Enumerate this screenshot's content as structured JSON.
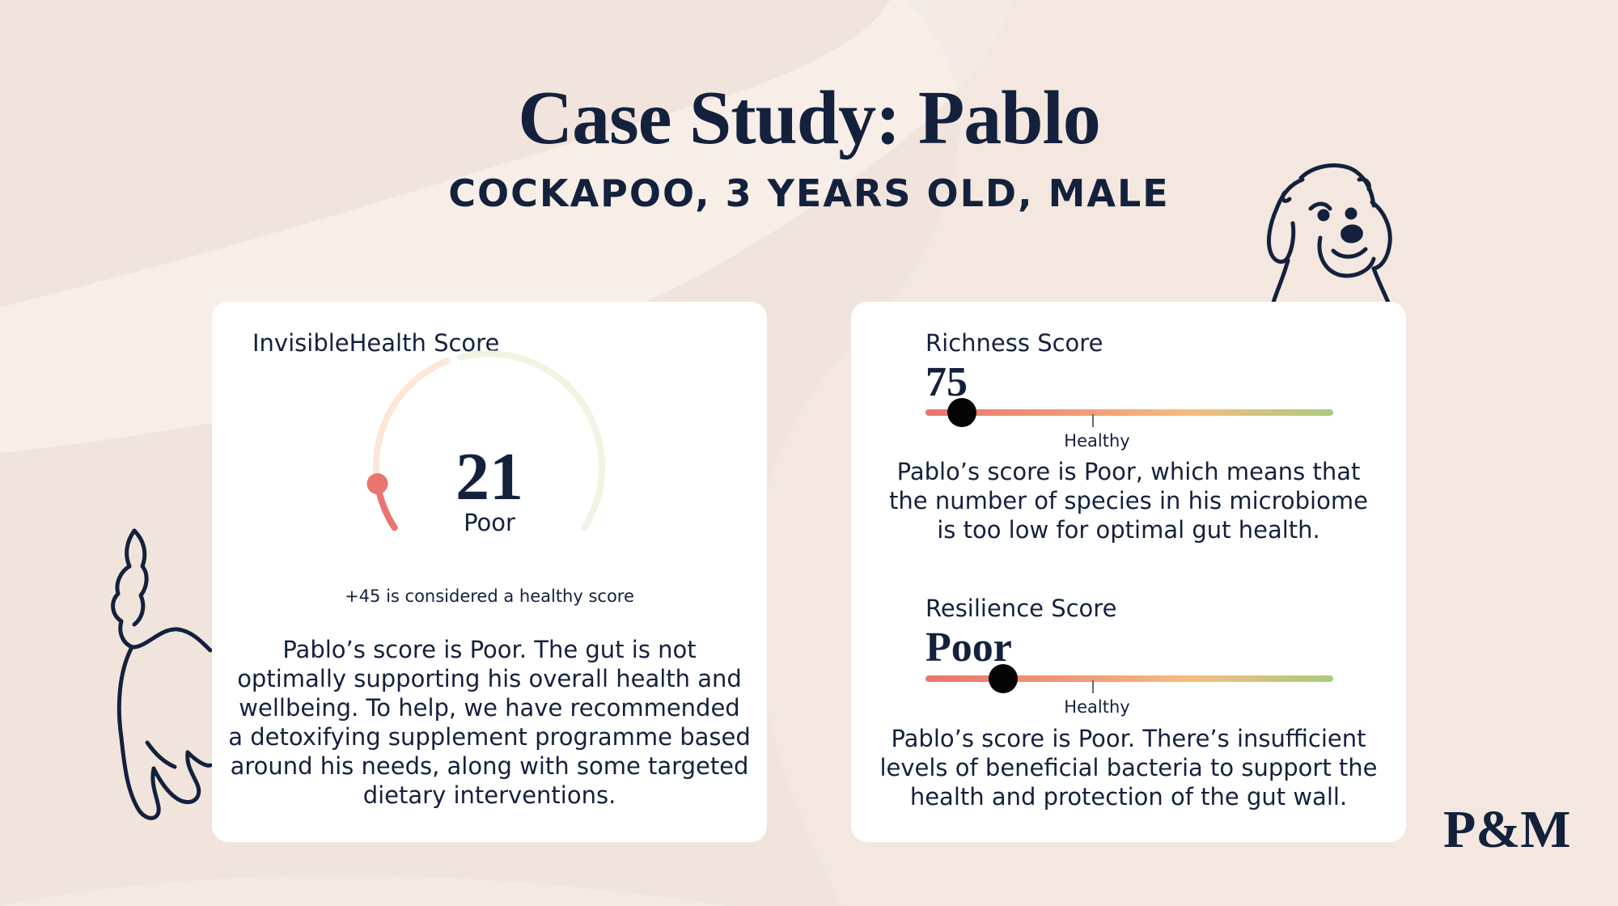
{
  "header": {
    "title": "Case Study: Pablo",
    "subtitle": "COCKAPOO, 3 YEARS OLD, MALE"
  },
  "invisible_health": {
    "label": "InvisibleHealth Score",
    "value": "21",
    "status": "Poor",
    "note": "+45 is considered a healthy score",
    "description_lines": [
      "Pablo’s score is Poor. The gut is not",
      "optimally supporting his overall health and",
      "wellbeing. To help, we have recommended",
      "a detoxifying supplement programme based",
      "around his needs, along with some targeted",
      "dietary interventions."
    ]
  },
  "richness": {
    "label": "Richness Score",
    "value": "75",
    "marker_fraction": 0.09,
    "healthy_label": "Healthy",
    "description_lines": [
      "Pablo’s score is Poor, which means that",
      "the number of species in his microbiome",
      "is too low for optimal gut health."
    ]
  },
  "resilience": {
    "label": "Resilience Score",
    "value": "Poor",
    "marker_fraction": 0.19,
    "healthy_label": "Healthy",
    "description_lines": [
      "Pablo’s score is Poor. There’s insufficient",
      "levels of beneficial bacteria to support the",
      "health and protection of the gut wall."
    ]
  },
  "brand": {
    "logo": "P&M"
  },
  "colors": {
    "navy": "#14213d",
    "poor": "#e8756e",
    "healthy": "#a8cc7e",
    "background": "#f1e4dc"
  }
}
